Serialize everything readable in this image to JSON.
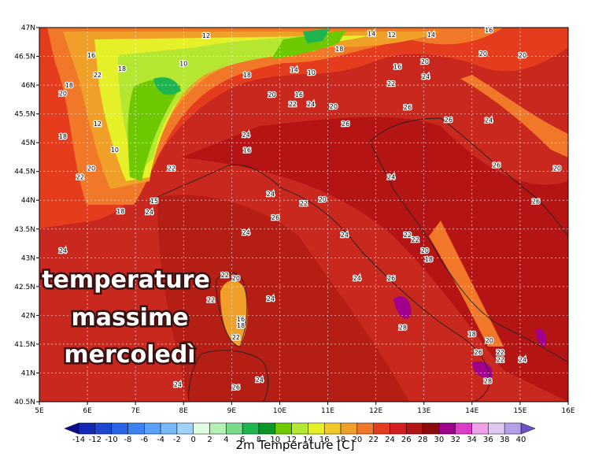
{
  "map": {
    "lon_ticks": [
      {
        "value": 5,
        "label": "5E"
      },
      {
        "value": 6,
        "label": "6E"
      },
      {
        "value": 7,
        "label": "7E"
      },
      {
        "value": 8,
        "label": "8E"
      },
      {
        "value": 9,
        "label": "9E"
      },
      {
        "value": 10,
        "label": "10E"
      },
      {
        "value": 11,
        "label": "11E"
      },
      {
        "value": 12,
        "label": "12E"
      },
      {
        "value": 13,
        "label": "13E"
      },
      {
        "value": 14,
        "label": "14E"
      },
      {
        "value": 15,
        "label": "15E"
      },
      {
        "value": 16,
        "label": "16E"
      }
    ],
    "lat_ticks": [
      {
        "value": 47,
        "label": "47N"
      },
      {
        "value": 46.5,
        "label": "46.5N"
      },
      {
        "value": 46,
        "label": "46N"
      },
      {
        "value": 45.5,
        "label": "45.5N"
      },
      {
        "value": 45,
        "label": "45N"
      },
      {
        "value": 44.5,
        "label": "44.5N"
      },
      {
        "value": 44,
        "label": "44N"
      },
      {
        "value": 43.5,
        "label": "43.5N"
      },
      {
        "value": 43,
        "label": "43N"
      },
      {
        "value": 42.5,
        "label": "42.5N"
      },
      {
        "value": 42,
        "label": "42N"
      },
      {
        "value": 41.5,
        "label": "41.5N"
      },
      {
        "value": 41,
        "label": "41N"
      },
      {
        "value": 40.5,
        "label": "40.5N"
      }
    ],
    "overlay": [
      "temperature",
      "massime",
      "mercoledì"
    ],
    "colorbar": {
      "title": "2m Temperature [C]",
      "levels": [
        -14,
        -12,
        -10,
        -8,
        -6,
        -4,
        -2,
        0,
        2,
        4,
        6,
        8,
        10,
        12,
        14,
        16,
        18,
        20,
        22,
        24,
        26,
        28,
        30,
        32,
        34,
        36,
        38,
        40
      ],
      "colors": [
        "#0c0c8c",
        "#1428b4",
        "#1e46d2",
        "#2864e6",
        "#3c82f0",
        "#5aa0fa",
        "#78b9fa",
        "#a0d2fa",
        "#e1ffe1",
        "#b4f0b4",
        "#78dc8c",
        "#1eb450",
        "#0a9628",
        "#6ec800",
        "#b4e632",
        "#e6f028",
        "#f0c828",
        "#f0a028",
        "#f07828",
        "#e63c1e",
        "#d21e1e",
        "#b41414",
        "#8c0a0a",
        "#a0008c",
        "#dc3cc8",
        "#f0a0e6",
        "#dcc8f0",
        "#b4a0e6",
        "#6e50c8"
      ]
    },
    "stations": [
      {
        "lon": 8.47,
        "lat": 46.86,
        "value": 12
      },
      {
        "lon": 6.08,
        "lat": 46.52,
        "value": 16
      },
      {
        "lon": 6.21,
        "lat": 46.18,
        "value": 22
      },
      {
        "lon": 6.72,
        "lat": 46.29,
        "value": 18
      },
      {
        "lon": 5.62,
        "lat": 46.0,
        "value": 18
      },
      {
        "lon": 5.49,
        "lat": 45.86,
        "value": 20
      },
      {
        "lon": 8.0,
        "lat": 46.38,
        "value": 10
      },
      {
        "lon": 10.3,
        "lat": 46.27,
        "value": 14
      },
      {
        "lon": 10.66,
        "lat": 46.22,
        "value": 10
      },
      {
        "lon": 9.84,
        "lat": 45.84,
        "value": 20
      },
      {
        "lon": 10.27,
        "lat": 45.67,
        "value": 22
      },
      {
        "lon": 10.4,
        "lat": 45.84,
        "value": 16
      },
      {
        "lon": 10.65,
        "lat": 45.67,
        "value": 24
      },
      {
        "lon": 11.12,
        "lat": 45.63,
        "value": 20
      },
      {
        "lon": 9.32,
        "lat": 46.18,
        "value": 18
      },
      {
        "lon": 12.33,
        "lat": 46.88,
        "value": 12
      },
      {
        "lon": 11.91,
        "lat": 46.9,
        "value": 14
      },
      {
        "lon": 13.15,
        "lat": 46.88,
        "value": 14
      },
      {
        "lon": 11.24,
        "lat": 46.63,
        "value": 18
      },
      {
        "lon": 14.35,
        "lat": 46.96,
        "value": 16
      },
      {
        "lon": 14.23,
        "lat": 46.55,
        "value": 20
      },
      {
        "lon": 15.05,
        "lat": 46.52,
        "value": 20
      },
      {
        "lon": 13.02,
        "lat": 46.41,
        "value": 20
      },
      {
        "lon": 12.45,
        "lat": 46.32,
        "value": 16
      },
      {
        "lon": 12.32,
        "lat": 46.03,
        "value": 22
      },
      {
        "lon": 13.04,
        "lat": 46.15,
        "value": 24
      },
      {
        "lon": 12.66,
        "lat": 45.62,
        "value": 26
      },
      {
        "lon": 13.51,
        "lat": 45.4,
        "value": 26
      },
      {
        "lon": 14.35,
        "lat": 45.39,
        "value": 24
      },
      {
        "lon": 14.51,
        "lat": 44.61,
        "value": 26
      },
      {
        "lon": 15.77,
        "lat": 44.56,
        "value": 20
      },
      {
        "lon": 15.33,
        "lat": 43.98,
        "value": 26
      },
      {
        "lon": 11.37,
        "lat": 45.33,
        "value": 26
      },
      {
        "lon": 9.3,
        "lat": 45.14,
        "value": 24
      },
      {
        "lon": 9.32,
        "lat": 44.87,
        "value": 16
      },
      {
        "lon": 6.21,
        "lat": 45.33,
        "value": 12
      },
      {
        "lon": 5.49,
        "lat": 45.11,
        "value": 18
      },
      {
        "lon": 6.57,
        "lat": 44.88,
        "value": 10
      },
      {
        "lon": 6.08,
        "lat": 44.56,
        "value": 20
      },
      {
        "lon": 5.85,
        "lat": 44.41,
        "value": 22
      },
      {
        "lon": 7.75,
        "lat": 44.56,
        "value": 22
      },
      {
        "lon": 7.39,
        "lat": 43.99,
        "value": 15
      },
      {
        "lon": 7.29,
        "lat": 43.8,
        "value": 24
      },
      {
        "lon": 6.69,
        "lat": 43.81,
        "value": 18
      },
      {
        "lon": 9.81,
        "lat": 44.11,
        "value": 24
      },
      {
        "lon": 10.5,
        "lat": 43.95,
        "value": 22
      },
      {
        "lon": 10.89,
        "lat": 44.02,
        "value": 20
      },
      {
        "lon": 9.91,
        "lat": 43.7,
        "value": 26
      },
      {
        "lon": 9.3,
        "lat": 43.44,
        "value": 24
      },
      {
        "lon": 11.35,
        "lat": 43.4,
        "value": 24
      },
      {
        "lon": 12.32,
        "lat": 44.41,
        "value": 24
      },
      {
        "lon": 12.66,
        "lat": 43.4,
        "value": 22
      },
      {
        "lon": 12.82,
        "lat": 43.32,
        "value": 22
      },
      {
        "lon": 13.02,
        "lat": 43.13,
        "value": 20
      },
      {
        "lon": 13.1,
        "lat": 42.98,
        "value": 18
      },
      {
        "lon": 5.49,
        "lat": 43.13,
        "value": 24
      },
      {
        "lon": 8.86,
        "lat": 42.7,
        "value": 22
      },
      {
        "lon": 9.09,
        "lat": 42.65,
        "value": 20
      },
      {
        "lon": 8.57,
        "lat": 42.27,
        "value": 22
      },
      {
        "lon": 9.81,
        "lat": 42.29,
        "value": 24
      },
      {
        "lon": 11.61,
        "lat": 42.65,
        "value": 24
      },
      {
        "lon": 12.32,
        "lat": 42.65,
        "value": 26
      },
      {
        "lon": 9.19,
        "lat": 41.94,
        "value": 16
      },
      {
        "lon": 9.19,
        "lat": 41.83,
        "value": 18
      },
      {
        "lon": 9.09,
        "lat": 41.62,
        "value": 22
      },
      {
        "lon": 12.56,
        "lat": 41.79,
        "value": 28
      },
      {
        "lon": 14.0,
        "lat": 41.68,
        "value": 18
      },
      {
        "lon": 14.36,
        "lat": 41.57,
        "value": 20
      },
      {
        "lon": 14.13,
        "lat": 41.36,
        "value": 26
      },
      {
        "lon": 14.59,
        "lat": 41.36,
        "value": 22
      },
      {
        "lon": 14.59,
        "lat": 41.23,
        "value": 22
      },
      {
        "lon": 15.05,
        "lat": 41.23,
        "value": 24
      },
      {
        "lon": 14.33,
        "lat": 40.86,
        "value": 28
      },
      {
        "lon": 7.88,
        "lat": 40.8,
        "value": 24
      },
      {
        "lon": 9.09,
        "lat": 40.75,
        "value": 26
      },
      {
        "lon": 9.58,
        "lat": 40.88,
        "value": 24
      }
    ]
  }
}
